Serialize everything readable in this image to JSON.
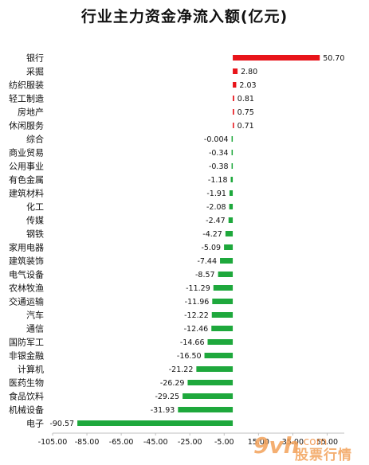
{
  "chart_data": {
    "type": "bar",
    "orientation": "horizontal",
    "title": "行业主力资金净流入额(亿元)",
    "categories": [
      "银行",
      "采掘",
      "纺织服装",
      "轻工制造",
      "房地产",
      "休闲服务",
      "综合",
      "商业贸易",
      "公用事业",
      "有色金属",
      "建筑材料",
      "化工",
      "传媒",
      "钢铁",
      "家用电器",
      "建筑装饰",
      "电气设备",
      "农林牧渔",
      "交通运输",
      "汽车",
      "通信",
      "国防军工",
      "非银金融",
      "计算机",
      "医药生物",
      "食品饮料",
      "机械设备",
      "电子"
    ],
    "values": [
      50.7,
      2.8,
      2.03,
      0.81,
      0.75,
      0.71,
      -0.004,
      -0.34,
      -0.38,
      -1.18,
      -1.91,
      -2.08,
      -2.47,
      -4.27,
      -5.09,
      -7.44,
      -8.57,
      -11.29,
      -11.96,
      -12.22,
      -12.46,
      -14.66,
      -16.5,
      -21.22,
      -26.29,
      -29.25,
      -31.93,
      -90.57
    ],
    "value_labels": [
      "50.70",
      "2.80",
      "2.03",
      "0.81",
      "0.75",
      "0.71",
      "-0.004",
      "-0.34",
      "-0.38",
      "-1.18",
      "-1.91",
      "-2.08",
      "-2.47",
      "-4.27",
      "-5.09",
      "-7.44",
      "-8.57",
      "-11.29",
      "-11.96",
      "-12.22",
      "-12.46",
      "-14.66",
      "-16.50",
      "-21.22",
      "-26.29",
      "-29.25",
      "-31.93",
      "-90.57"
    ],
    "xlim": [
      -105,
      65
    ],
    "x_ticks": [
      "-105.00",
      "-85.00",
      "-65.00",
      "-45.00",
      "-25.00",
      "-5.00",
      "15.00",
      "35.00",
      "55.00"
    ],
    "x_tick_values": [
      -105,
      -85,
      -65,
      -45,
      -25,
      -5,
      15,
      35,
      55
    ],
    "colors": {
      "positive": "#e8141a",
      "negative": "#1ea83c"
    },
    "grid": false
  },
  "watermark": {
    "logo": "9vh",
    "text": "股票行情",
    "dot": ".com"
  }
}
